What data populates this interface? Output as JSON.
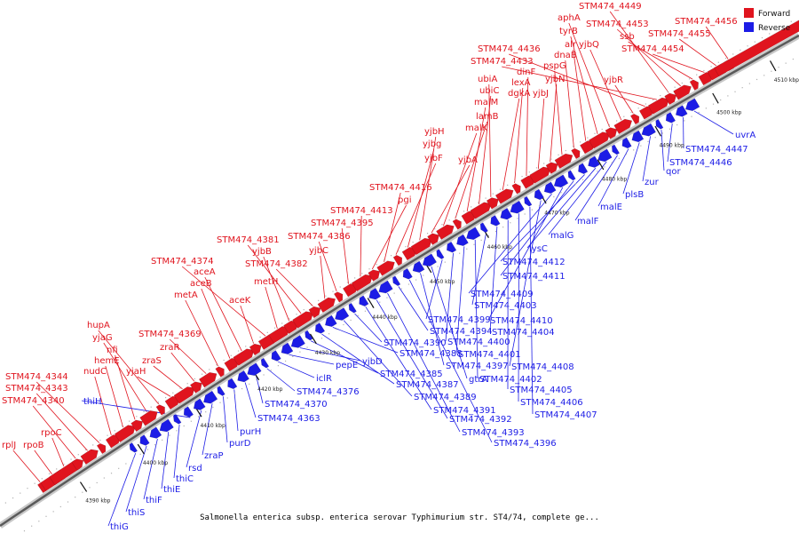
{
  "caption": "Salmonella enterica subsp. enterica serovar Typhimurium str. ST4/74, complete ge...",
  "legend": [
    {
      "label": "Forward",
      "color": "#e0141e"
    },
    {
      "label": "Reverse",
      "color": "#1c1ce6"
    }
  ],
  "scale": {
    "unit": "kbp",
    "ticks": [
      "4390 kbp",
      "4400 kbp",
      "4410 kbp",
      "4420 kbp",
      "4430 kbp",
      "4440 kbp",
      "4450 kbp",
      "4460 kbp",
      "4470 kbp",
      "4480 kbp",
      "4490 kbp",
      "4500 kbp",
      "4510 kbp"
    ]
  },
  "forward_labels": [
    "rplJ",
    "rpoB",
    "rpoC",
    "STM474_4340",
    "STM474_4343",
    "STM474_4344",
    "nudC",
    "hemE",
    "nfi",
    "yjaG",
    "hupA",
    "yjaH",
    "zraS",
    "zraR",
    "STM474_4369",
    "metA",
    "aceB",
    "aceA",
    "aceK",
    "STM474_4374",
    "metH",
    "yjbB",
    "STM474_4381",
    "STM474_4382",
    "yjbC",
    "STM474_4386",
    "STM474_4395",
    "STM474_4413",
    "pgi",
    "STM474_4416",
    "yjbF",
    "yjbg",
    "yjbH",
    "yjbA",
    "malK",
    "lamB",
    "malM",
    "ubiC",
    "ubiA",
    "dgkA",
    "lexA",
    "dinF",
    "yjbJ",
    "yjbN",
    "pspG",
    "dnaB",
    "alr",
    "tyrB",
    "aphA",
    "yjbQ",
    "yjbR",
    "STM474_4436",
    "STM474_4433",
    "STM474_4449",
    "STM474_4453",
    "ssb",
    "STM474_4454",
    "STM474_4455",
    "STM474_4456"
  ],
  "reverse_labels": [
    "thiG",
    "thiS",
    "thiF",
    "thiE",
    "thiC",
    "thiH",
    "rsd",
    "zraP",
    "purD",
    "purH",
    "STM474_4363",
    "STM474_4370",
    "STM474_4376",
    "iclR",
    "pepE",
    "yjbD",
    "STM474_4385",
    "STM474_4387",
    "STM474_4388",
    "STM474_4389",
    "STM474_4390",
    "STM474_4391",
    "STM474_4392",
    "STM474_4393",
    "STM474_4394",
    "STM474_4396",
    "STM474_4397",
    "gtrA",
    "STM474_4399",
    "STM474_4400",
    "STM474_4401",
    "STM474_4402",
    "STM474_4403",
    "STM474_4404",
    "STM474_4405",
    "STM474_4406",
    "STM474_4407",
    "STM474_4408",
    "STM474_4409",
    "STM474_4410",
    "STM474_4411",
    "STM474_4412",
    "lysC",
    "malG",
    "malF",
    "malE",
    "plsB",
    "zur",
    "qor",
    "STM474_4446",
    "STM474_4447",
    "uvrA"
  ]
}
